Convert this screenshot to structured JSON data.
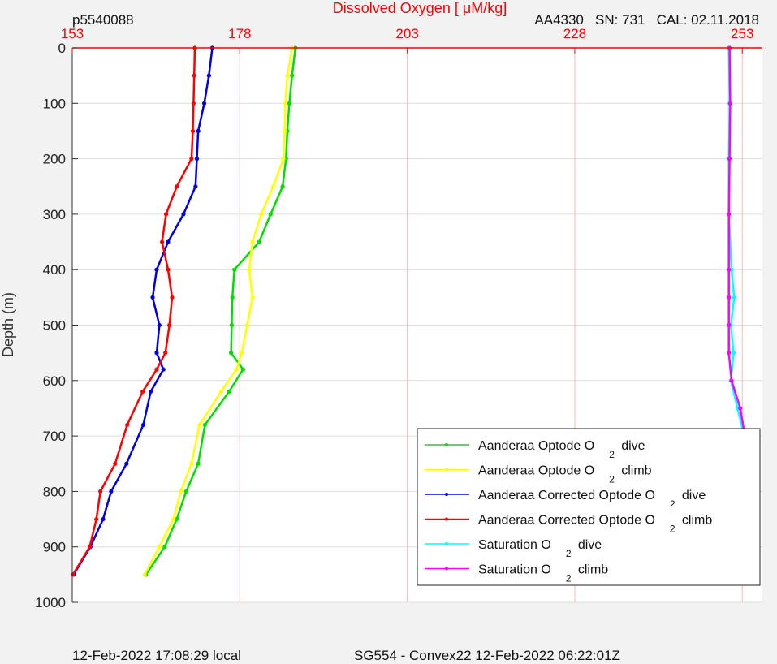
{
  "header": {
    "profile_id": "p5540088",
    "sensor_info": "AA4330   SN: 731   CAL: 02.11.2018"
  },
  "footer": {
    "local_time": "12-Feb-2022 17:08:29 local",
    "mission": "SG554 - Convex22 12-Feb-2022 06:22:01Z"
  },
  "chart_data": {
    "type": "line",
    "title": "Dissolved Oxygen [    μM/kg]",
    "xlabel": "",
    "ylabel": "Depth (m)",
    "xlim": [
      153,
      256
    ],
    "ylim": [
      0,
      1000
    ],
    "y_inverted": true,
    "x_axis_position": "top",
    "x_ticks": [
      153,
      178,
      203,
      228,
      253
    ],
    "y_ticks": [
      0,
      100,
      200,
      300,
      400,
      500,
      600,
      700,
      800,
      900,
      1000
    ],
    "grid": true,
    "legend_position": "bottom-right",
    "colors": {
      "axis_x": "#ff0000",
      "grid_x": "#ffb6b6",
      "grid_y": "#dddddd"
    },
    "series": [
      {
        "name": "Aanderaa Optode O 2 dive",
        "legend_parts": [
          "Aanderaa Optode O",
          "2",
          "dive"
        ],
        "color": "#00e000",
        "depth": [
          0,
          50,
          100,
          150,
          200,
          250,
          300,
          350,
          400,
          450,
          500,
          550,
          580,
          620,
          680,
          750,
          800,
          850,
          900,
          950
        ],
        "values": [
          186.3,
          185.8,
          185.4,
          185.1,
          184.9,
          184.4,
          182.6,
          180.9,
          177.2,
          176.9,
          176.8,
          176.7,
          178.5,
          176.4,
          172.8,
          171.8,
          170.0,
          168.6,
          166.8,
          164.0
        ]
      },
      {
        "name": "Aanderaa Optode O 2 climb",
        "legend_parts": [
          "Aanderaa Optode O",
          "2",
          "climb"
        ],
        "color": "#ffff00",
        "depth": [
          0,
          50,
          100,
          150,
          200,
          250,
          300,
          350,
          400,
          450,
          500,
          550,
          580,
          620,
          680,
          750,
          800,
          850,
          900,
          950
        ],
        "values": [
          185.8,
          185.1,
          184.8,
          184.7,
          184.5,
          183.0,
          181.2,
          179.9,
          179.4,
          179.9,
          179.1,
          178.3,
          177.5,
          175.2,
          172.0,
          170.8,
          169.2,
          168.1,
          166.0,
          163.8
        ]
      },
      {
        "name": "Aanderaa Corrected Optode O 2 dive",
        "legend_parts": [
          "Aanderaa Corrected Optode O",
          "2",
          "dive"
        ],
        "color": "#0000e0",
        "depth": [
          0,
          50,
          100,
          150,
          200,
          250,
          300,
          350,
          400,
          450,
          500,
          550,
          580,
          620,
          680,
          750,
          800,
          850,
          900,
          950
        ],
        "values": [
          173.9,
          173.4,
          172.7,
          171.8,
          171.6,
          171.4,
          169.6,
          167.3,
          165.6,
          165.0,
          166.0,
          165.6,
          166.6,
          164.7,
          163.6,
          161.1,
          158.8,
          157.6,
          155.7,
          153.2
        ]
      },
      {
        "name": "Aanderaa Corrected Optode O 2 climb",
        "legend_parts": [
          "Aanderaa Corrected Optode O",
          "2",
          "climb"
        ],
        "color": "#ff0000",
        "depth": [
          0,
          50,
          100,
          150,
          200,
          250,
          300,
          350,
          400,
          450,
          500,
          550,
          580,
          620,
          680,
          750,
          800,
          850,
          900,
          950
        ],
        "values": [
          171.3,
          171.2,
          171.1,
          171.0,
          170.8,
          168.6,
          167.0,
          166.4,
          167.3,
          167.9,
          167.5,
          166.9,
          165.6,
          163.5,
          161.2,
          159.4,
          157.2,
          156.6,
          155.6,
          153.1
        ]
      },
      {
        "name": "Saturation O 2 dive",
        "legend_parts": [
          "Saturation O",
          "2",
          "dive"
        ],
        "color": "#00ffff",
        "depth": [
          0,
          100,
          200,
          300,
          400,
          450,
          500,
          550,
          600,
          650,
          700,
          750,
          800,
          850,
          900,
          950
        ],
        "values": [
          251.0,
          251.1,
          251.0,
          251.0,
          251.4,
          251.8,
          251.3,
          251.7,
          251.3,
          252.3,
          253.3,
          253.9,
          254.2,
          254.5,
          254.8,
          255.1
        ]
      },
      {
        "name": "Saturation O 2 climb",
        "legend_parts": [
          "Saturation O",
          "2",
          "climb"
        ],
        "color": "#ff00ff",
        "depth": [
          0,
          100,
          200,
          300,
          400,
          450,
          500,
          550,
          600,
          650,
          700,
          750,
          800,
          850,
          900,
          950
        ],
        "values": [
          251.1,
          251.2,
          251.1,
          251.0,
          251.0,
          251.0,
          251.0,
          251.0,
          251.4,
          252.7,
          253.4,
          253.9,
          254.3,
          254.6,
          254.9,
          255.3
        ]
      }
    ]
  }
}
